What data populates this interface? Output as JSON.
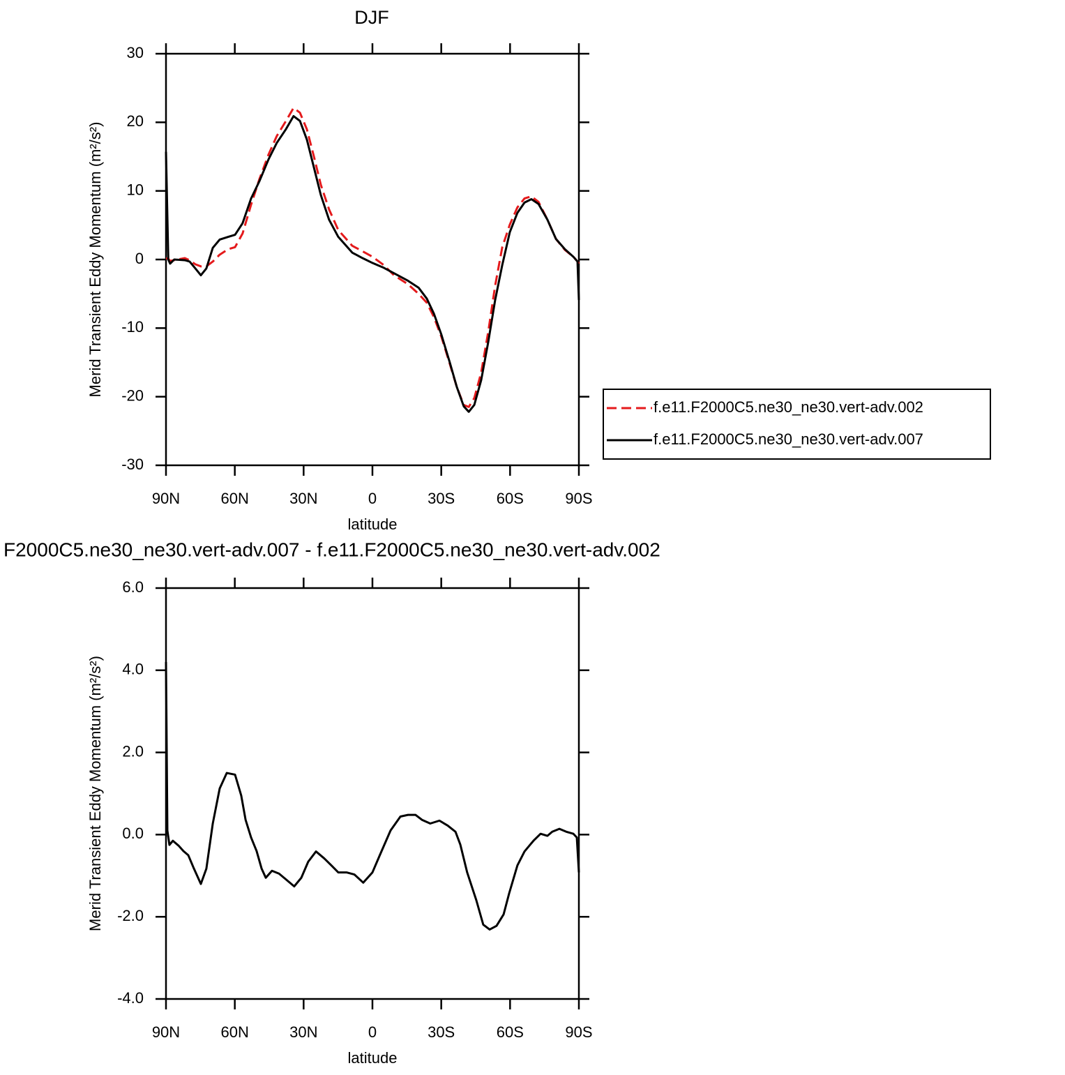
{
  "chart_data": [
    {
      "type": "line",
      "title": "DJF",
      "ylabel": "Merid Transient Eddy Momentum (m²/s²)",
      "xlabel": "latitude",
      "xlim": [
        90,
        -90
      ],
      "xticks": [
        {
          "value": 90,
          "label": "90N"
        },
        {
          "value": 60,
          "label": "60N"
        },
        {
          "value": 30,
          "label": "30N"
        },
        0,
        {
          "value": -30,
          "label": "30S"
        },
        {
          "value": -60,
          "label": "60S"
        },
        {
          "value": -90,
          "label": "90S"
        }
      ],
      "ylim": [
        -30,
        30
      ],
      "yticks": [
        -30,
        -20,
        -10,
        0,
        10,
        20,
        30
      ],
      "legend": "outside right",
      "x": [
        90,
        89,
        88.2,
        86.4,
        81.8,
        79.7,
        77.2,
        74.8,
        72.4,
        69.6,
        66.6,
        62.9,
        59.9,
        56.6,
        52.9,
        49.3,
        45.3,
        41.7,
        37.7,
        34.4,
        31.6,
        28.6,
        25.5,
        22.5,
        18.9,
        14.9,
        8.8,
        4.3,
        0,
        -4.9,
        -9.4,
        -15.5,
        -20.1,
        -23.7,
        -26.8,
        -30.1,
        -33.8,
        -36.8,
        -39.8,
        -42,
        -44.4,
        -47.4,
        -50.5,
        -53.5,
        -56.6,
        -59.9,
        -63.2,
        -66.3,
        -69.3,
        -72.4,
        -76.3,
        -80,
        -83.9,
        -87.6,
        -89.4,
        -90
      ],
      "series": [
        {
          "name": "f.e11.F2000C5.ne30_ne30.vert-adv.002",
          "color": "#e41a1c",
          "dash": "dashed",
          "values": [
            0.2,
            0.1,
            -0.2,
            -0.1,
            0.2,
            -0.1,
            -0.7,
            -1.0,
            -1.0,
            -0.3,
            0.7,
            1.5,
            1.8,
            3.8,
            8,
            11.7,
            15.3,
            18,
            20.2,
            22.1,
            21.4,
            19,
            15,
            10.9,
            7.3,
            4.3,
            2,
            1.2,
            0.4,
            -0.8,
            -2.3,
            -3.6,
            -5,
            -6.3,
            -8.4,
            -11.3,
            -15.3,
            -18.6,
            -21.2,
            -21.5,
            -20.2,
            -16.5,
            -10.5,
            -3.8,
            1.8,
            5.1,
            7.6,
            8.9,
            9.2,
            8.4,
            5.8,
            3,
            1.4,
            0.4,
            -0.3,
            -0.6
          ]
        },
        {
          "name": "f.e11.F2000C5.ne30_ne30.vert-adv.007",
          "color": "#000000",
          "dash": "solid",
          "values": [
            15.7,
            0,
            -0.6,
            0,
            -0.1,
            -0.3,
            -1.3,
            -2.3,
            -1.3,
            1.7,
            2.9,
            3.3,
            3.6,
            5.3,
            8.9,
            11.4,
            14.6,
            17,
            19,
            20.9,
            20.2,
            17.5,
            13.4,
            9.4,
            5.8,
            3.3,
            1,
            0.2,
            -0.5,
            -1.2,
            -2,
            -3.1,
            -4.1,
            -5.7,
            -7.9,
            -11,
            -15.1,
            -18.6,
            -21.4,
            -22.2,
            -21.2,
            -17.6,
            -12,
            -5.9,
            -0.8,
            4,
            6.8,
            8.3,
            8.8,
            8.1,
            5.8,
            3,
            1.5,
            0.4,
            -0.3,
            -5.9
          ]
        }
      ]
    },
    {
      "type": "line",
      "title": "F2000C5.ne30_ne30.vert-adv.007 - f.e11.F2000C5.ne30_ne30.vert-adv.002",
      "ylabel": "Merid Transient Eddy Momentum (m²/s²)",
      "xlabel": "latitude",
      "xlim": [
        90,
        -90
      ],
      "xticks": [
        {
          "value": 90,
          "label": "90N"
        },
        {
          "value": 60,
          "label": "60N"
        },
        {
          "value": 30,
          "label": "30N"
        },
        0,
        {
          "value": -30,
          "label": "30S"
        },
        {
          "value": -60,
          "label": "60S"
        },
        {
          "value": -90,
          "label": "90S"
        }
      ],
      "ylim": [
        -4,
        6
      ],
      "yticks": [
        {
          "value": -4,
          "label": "-4.0"
        },
        {
          "value": -2,
          "label": "-2.0"
        },
        {
          "value": 0,
          "label": "0.0"
        },
        {
          "value": 2,
          "label": "2.0"
        },
        {
          "value": 4,
          "label": "4.0"
        },
        {
          "value": 6,
          "label": "6.0"
        }
      ],
      "x": [
        90,
        89.4,
        88.5,
        87,
        84.5,
        82.4,
        80.3,
        77.8,
        74.8,
        72.4,
        69.6,
        66.6,
        63.5,
        59.9,
        57.2,
        55.3,
        52.9,
        50.5,
        48.3,
        46.5,
        43.8,
        40.7,
        37.7,
        34.1,
        31,
        28,
        24.6,
        21,
        17.9,
        14.9,
        11.3,
        7.9,
        4,
        0,
        -3.3,
        -7.9,
        -12.2,
        -15.5,
        -18.8,
        -21.6,
        -25.2,
        -29.2,
        -32.8,
        -36.2,
        -38.3,
        -41.3,
        -45.3,
        -48.3,
        -51.1,
        -54.1,
        -57.2,
        -59.6,
        -63.2,
        -66.3,
        -70.2,
        -73.3,
        -76.3,
        -78.4,
        -81.5,
        -84.5,
        -87.6,
        -89.1,
        -90
      ],
      "series": [
        {
          "color": "#000000",
          "dash": "solid",
          "values": [
            4.2,
            0.1,
            -0.25,
            -0.15,
            -0.27,
            -0.4,
            -0.5,
            -0.83,
            -1.2,
            -0.83,
            0.27,
            1.12,
            1.5,
            1.46,
            0.95,
            0.36,
            -0.07,
            -0.4,
            -0.83,
            -1.05,
            -0.88,
            -0.95,
            -1.09,
            -1.26,
            -1.05,
            -0.66,
            -0.41,
            -0.58,
            -0.75,
            -0.92,
            -0.92,
            -0.97,
            -1.17,
            -0.92,
            -0.49,
            0.1,
            0.44,
            0.48,
            0.48,
            0.36,
            0.27,
            0.34,
            0.22,
            0.07,
            -0.24,
            -0.92,
            -1.6,
            -2.19,
            -2.31,
            -2.22,
            -1.94,
            -1.43,
            -0.75,
            -0.41,
            -0.15,
            0.02,
            -0.03,
            0.07,
            0.14,
            0.07,
            0.02,
            -0.07,
            -0.92
          ]
        }
      ]
    }
  ]
}
